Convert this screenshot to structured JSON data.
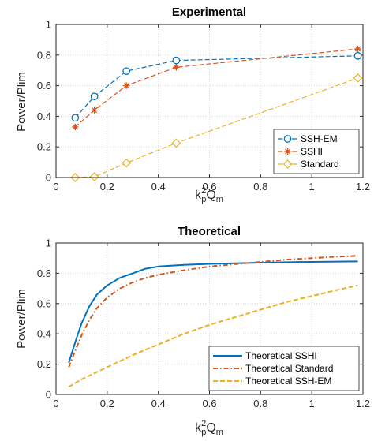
{
  "chart_data": [
    {
      "type": "line",
      "title": "Experimental",
      "ylabel": "Power/Plim",
      "xlabel": {
        "base1": "k",
        "sup": "2",
        "sub": "p",
        "base2": "Q",
        "sub2": "m"
      },
      "xlim": [
        0,
        1.2
      ],
      "ylim": [
        0,
        1
      ],
      "xticks": [
        "0",
        "0.2",
        "0.4",
        "0.6",
        "0.8",
        "1",
        "1.2"
      ],
      "yticks": [
        "0",
        "0.2",
        "0.4",
        "0.6",
        "0.8",
        "1"
      ],
      "grid": true,
      "legend_position": "bottom-right",
      "series": [
        {
          "name": "SSH-EM",
          "color": "#0072BD",
          "marker": "circle",
          "line": "dashed",
          "x": [
            0.075,
            0.15,
            0.275,
            0.47,
            1.18
          ],
          "y": [
            0.39,
            0.53,
            0.695,
            0.765,
            0.795
          ]
        },
        {
          "name": "SSHI",
          "color": "#D95319",
          "marker": "asterisk",
          "line": "dashed",
          "x": [
            0.075,
            0.15,
            0.275,
            0.47,
            1.18
          ],
          "y": [
            0.33,
            0.44,
            0.6,
            0.72,
            0.84
          ]
        },
        {
          "name": "Standard",
          "color": "#EDB120",
          "marker": "diamond",
          "line": "dashed",
          "x": [
            0.075,
            0.15,
            0.275,
            0.47,
            1.18
          ],
          "y": [
            0.0,
            0.005,
            0.095,
            0.225,
            0.65
          ]
        }
      ]
    },
    {
      "type": "line",
      "title": "Theoretical",
      "ylabel": "Power/Plim",
      "xlabel": {
        "base1": "k",
        "sup": "2",
        "sub": "p",
        "base2": "Q",
        "sub2": "m"
      },
      "xlim": [
        0,
        1.2
      ],
      "ylim": [
        0,
        1
      ],
      "xticks": [
        "0",
        "0.2",
        "0.4",
        "0.6",
        "0.8",
        "1",
        "1.2"
      ],
      "yticks": [
        "0",
        "0.2",
        "0.4",
        "0.6",
        "0.8",
        "1"
      ],
      "grid": true,
      "legend_position": "bottom-right",
      "series": [
        {
          "name": "Theoretical SSHI",
          "color": "#0072BD",
          "line": "solid",
          "x": [
            0.05,
            0.08,
            0.1,
            0.13,
            0.16,
            0.2,
            0.25,
            0.3,
            0.35,
            0.4,
            0.5,
            0.6,
            0.7,
            0.8,
            0.9,
            1.0,
            1.1,
            1.18
          ],
          "y": [
            0.21,
            0.37,
            0.47,
            0.58,
            0.66,
            0.72,
            0.77,
            0.8,
            0.83,
            0.845,
            0.855,
            0.862,
            0.866,
            0.87,
            0.873,
            0.875,
            0.877,
            0.878
          ]
        },
        {
          "name": "Theoretical Standard",
          "color": "#D95319",
          "line": "dashdot",
          "x": [
            0.05,
            0.08,
            0.1,
            0.13,
            0.16,
            0.2,
            0.25,
            0.3,
            0.35,
            0.4,
            0.5,
            0.6,
            0.7,
            0.8,
            0.9,
            1.0,
            1.1,
            1.18
          ],
          "y": [
            0.18,
            0.31,
            0.39,
            0.49,
            0.57,
            0.64,
            0.7,
            0.74,
            0.77,
            0.79,
            0.82,
            0.845,
            0.86,
            0.875,
            0.89,
            0.9,
            0.91,
            0.915
          ]
        },
        {
          "name": "Theoretical SSH-EM",
          "color": "#EDB120",
          "line": "dashed",
          "x": [
            0.05,
            0.1,
            0.2,
            0.3,
            0.4,
            0.5,
            0.6,
            0.7,
            0.8,
            0.9,
            1.0,
            1.1,
            1.18
          ],
          "y": [
            0.05,
            0.1,
            0.18,
            0.26,
            0.33,
            0.4,
            0.46,
            0.51,
            0.56,
            0.61,
            0.65,
            0.69,
            0.72
          ]
        }
      ]
    }
  ]
}
